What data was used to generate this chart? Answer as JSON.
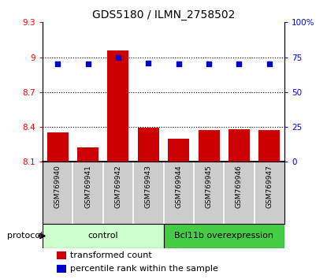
{
  "title": "GDS5180 / ILMN_2758502",
  "samples": [
    "GSM769940",
    "GSM769941",
    "GSM769942",
    "GSM769943",
    "GSM769944",
    "GSM769945",
    "GSM769946",
    "GSM769947"
  ],
  "bar_values": [
    8.35,
    8.22,
    9.06,
    8.39,
    8.3,
    8.37,
    8.38,
    8.37
  ],
  "dot_values": [
    70,
    70,
    75,
    71,
    70,
    70,
    70,
    70
  ],
  "ylim_left": [
    8.1,
    9.3
  ],
  "ylim_right": [
    0,
    100
  ],
  "yticks_left": [
    8.1,
    8.4,
    8.7,
    9.0,
    9.3
  ],
  "yticks_right": [
    0,
    25,
    50,
    75,
    100
  ],
  "ytick_labels_left": [
    "8.1",
    "8.4",
    "8.7",
    "9",
    "9.3"
  ],
  "ytick_labels_right": [
    "0",
    "25",
    "50",
    "75",
    "100%"
  ],
  "hlines": [
    9.0,
    8.7,
    8.4
  ],
  "bar_color": "#cc0000",
  "dot_color": "#0000cc",
  "bar_bottom": 8.1,
  "control_label": "control",
  "overexpression_label": "Bcl11b overexpression",
  "protocol_label": "protocol",
  "legend_bar_label": "transformed count",
  "legend_dot_label": "percentile rank within the sample",
  "control_color": "#ccffcc",
  "overexpression_color": "#44cc44",
  "sample_bg_color": "#cccccc",
  "bar_width": 0.7,
  "n_control": 4,
  "n_total": 8
}
